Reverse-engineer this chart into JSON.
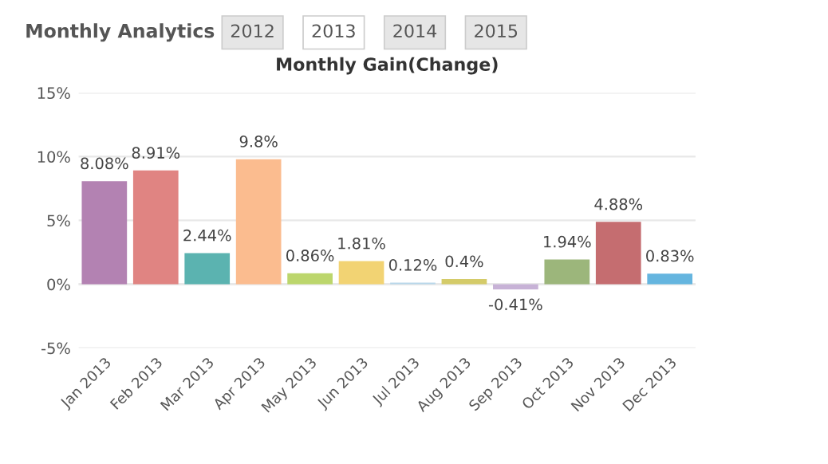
{
  "chart_data": {
    "type": "bar",
    "title": "Monthly Gain(Change)",
    "annotations": [
      "Monthly Analytics",
      "2012",
      "2013",
      "2014",
      "2015"
    ],
    "categories": [
      "Jan 2013",
      "Feb 2013",
      "Mar 2013",
      "Apr 2013",
      "May 2013",
      "Jun 2013",
      "Jul 2013",
      "Aug 2013",
      "Sep 2013",
      "Oct 2013",
      "Nov 2013",
      "Dec 2013"
    ],
    "values": [
      8.08,
      8.91,
      2.44,
      9.8,
      0.86,
      1.81,
      0.12,
      0.4,
      -0.41,
      1.94,
      4.88,
      0.83
    ],
    "value_labels": [
      "8.08%",
      "8.91%",
      "2.44%",
      "9.8%",
      "0.86%",
      "1.81%",
      "0.12%",
      "0.4%",
      "-0.41%",
      "1.94%",
      "4.88%",
      "0.83%"
    ],
    "colors": [
      "#b382b2",
      "#e08482",
      "#5bb3b0",
      "#fbbc8f",
      "#bcd66c",
      "#f2d373",
      "#b9d7ea",
      "#d4cb69",
      "#c7b2d6",
      "#9cb67b",
      "#c56d70",
      "#65b5df"
    ],
    "ylim": [
      -5,
      15
    ],
    "yticks": [
      {
        "value": -5,
        "label": "-5%"
      },
      {
        "value": 0,
        "label": "0%"
      },
      {
        "value": 5,
        "label": "5%"
      },
      {
        "value": 10,
        "label": "10%"
      },
      {
        "value": 15,
        "label": "15%"
      }
    ],
    "grid": "y"
  }
}
